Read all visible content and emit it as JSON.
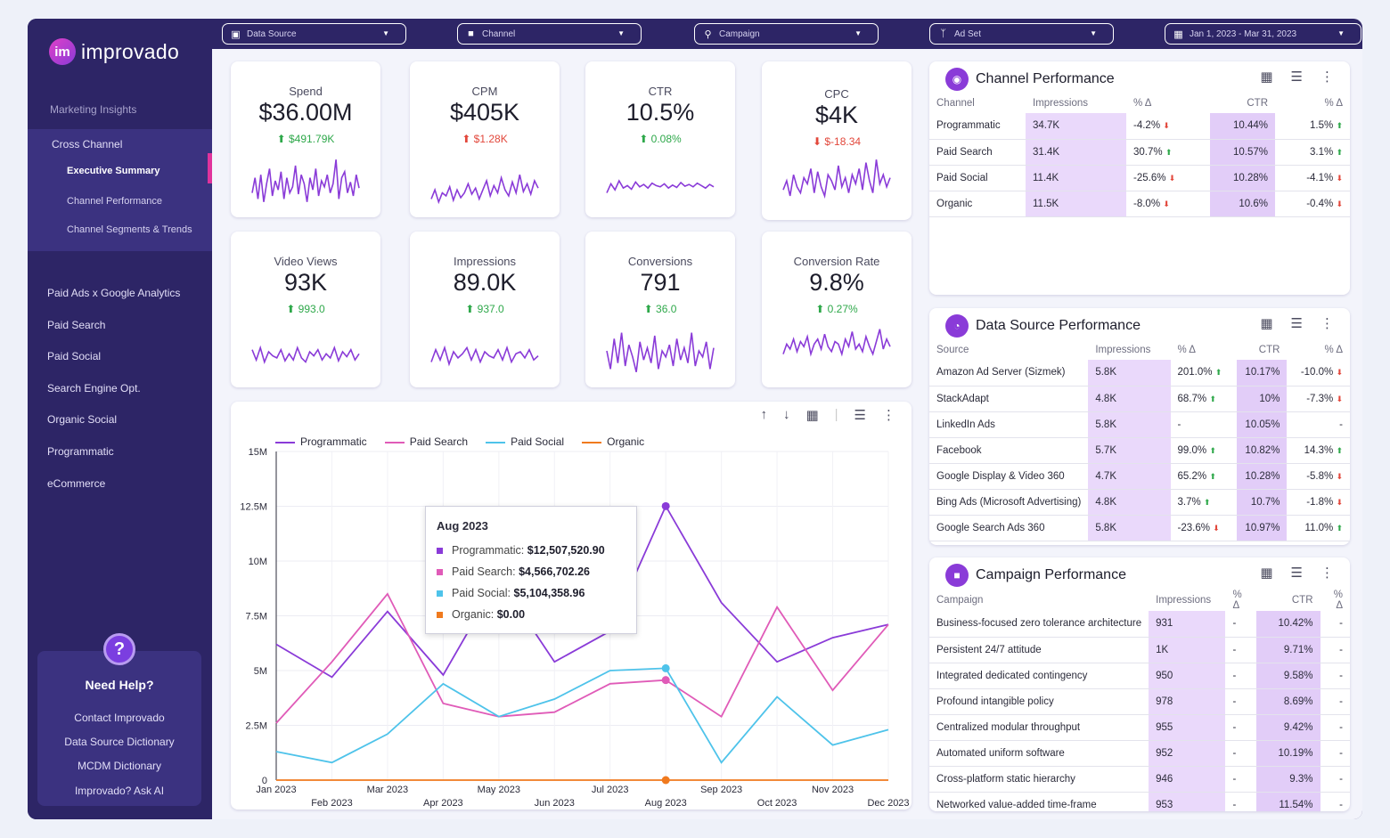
{
  "brand": {
    "logo_badge": "im",
    "name": "improvado",
    "accent": "#e0339c",
    "sidebar_bg": "#2d2566"
  },
  "sidebar": {
    "heading": "Marketing Insights",
    "group_title": "Cross Channel",
    "sub_items": [
      "Executive Summary",
      "Channel Performance",
      "Channel Segments & Trends"
    ],
    "items": [
      "Paid Ads x Google Analytics",
      "Paid Search",
      "Paid Social",
      "Search Engine Opt.",
      "Organic Social",
      "Programmatic",
      "eCommerce"
    ],
    "help": {
      "icon": "question-icon",
      "title": "Need Help?",
      "links": [
        "Contact Improvado",
        "Data Source Dictionary",
        "MCDM Dictionary",
        "Improvado? Ask AI"
      ]
    }
  },
  "filters": [
    {
      "label": "Data Source",
      "icon": "database-icon"
    },
    {
      "label": "Channel",
      "icon": "folder-icon"
    },
    {
      "label": "Campaign",
      "icon": "search-icon"
    },
    {
      "label": "Ad Set",
      "icon": "branch-icon"
    },
    {
      "label": "Jan 1, 2023 - Mar 31, 2023",
      "icon": "calendar-icon"
    }
  ],
  "kpis": [
    {
      "label": "Spend",
      "value": "$36.00M",
      "delta": "$491.79K",
      "dir": "up"
    },
    {
      "label": "CPM",
      "value": "$405K",
      "delta": "$1.28K",
      "dir": "down"
    },
    {
      "label": "CTR",
      "value": "10.5%",
      "delta": "0.08%",
      "dir": "up"
    },
    {
      "label": "CPC",
      "value": "$4K",
      "delta": "$-18.34",
      "dir": "down"
    },
    {
      "label": "Video Views",
      "value": "93K",
      "delta": "993.0",
      "dir": "up"
    },
    {
      "label": "Impressions",
      "value": "89.0K",
      "delta": "937.0",
      "dir": "up"
    },
    {
      "label": "Conversions",
      "value": "791",
      "delta": "36.0",
      "dir": "up"
    },
    {
      "label": "Conversion Rate",
      "value": "9.8%",
      "delta": "0.27%",
      "dir": "up"
    }
  ],
  "channel_perf": {
    "title": "Channel Performance",
    "headers": [
      "Channel",
      "Impressions",
      "% Δ",
      "CTR",
      "% Δ"
    ],
    "rows": [
      [
        "Programmatic",
        "34.7K",
        "-4.2%",
        "down",
        "10.44%",
        "1.5%",
        "up"
      ],
      [
        "Paid Search",
        "31.4K",
        "30.7%",
        "up",
        "10.57%",
        "3.1%",
        "up"
      ],
      [
        "Paid Social",
        "11.4K",
        "-25.6%",
        "down",
        "10.28%",
        "-4.1%",
        "down"
      ],
      [
        "Organic",
        "11.5K",
        "-8.0%",
        "down",
        "10.6%",
        "-0.4%",
        "down"
      ]
    ]
  },
  "source_perf": {
    "title": "Data Source Performance",
    "headers": [
      "Source",
      "Impressions",
      "% Δ",
      "CTR",
      "% Δ"
    ],
    "rows": [
      [
        "Amazon Ad Server (Sizmek)",
        "5.8K",
        "201.0%",
        "up",
        "10.17%",
        "-10.0%",
        "down"
      ],
      [
        "StackAdapt",
        "4.8K",
        "68.7%",
        "up",
        "10%",
        "-7.3%",
        "down"
      ],
      [
        "LinkedIn Ads",
        "5.8K",
        "-",
        "",
        "10.05%",
        "-",
        ""
      ],
      [
        "Facebook",
        "5.7K",
        "99.0%",
        "up",
        "10.82%",
        "14.3%",
        "up"
      ],
      [
        "Google Display & Video 360",
        "4.7K",
        "65.2%",
        "up",
        "10.28%",
        "-5.8%",
        "down"
      ],
      [
        "Bing Ads (Microsoft Advertising)",
        "4.8K",
        "3.7%",
        "up",
        "10.7%",
        "-1.8%",
        "down"
      ],
      [
        "Google Search Ads 360",
        "5.8K",
        "-23.6%",
        "down",
        "10.97%",
        "11.0%",
        "up"
      ]
    ]
  },
  "campaign_perf": {
    "title": "Campaign Performance",
    "headers": [
      "Campaign",
      "Impressions",
      "% Δ",
      "CTR",
      "% Δ"
    ],
    "rows": [
      [
        "Business-focused zero tolerance architecture",
        "931",
        "-",
        "10.42%",
        "-"
      ],
      [
        "Persistent 24/7 attitude",
        "1K",
        "-",
        "9.71%",
        "-"
      ],
      [
        "Integrated dedicated contingency",
        "950",
        "-",
        "9.58%",
        "-"
      ],
      [
        "Profound intangible policy",
        "978",
        "-",
        "8.69%",
        "-"
      ],
      [
        "Centralized modular throughput",
        "955",
        "-",
        "9.42%",
        "-"
      ],
      [
        "Automated uniform software",
        "952",
        "-",
        "10.19%",
        "-"
      ],
      [
        "Cross-platform static hierarchy",
        "946",
        "-",
        "9.3%",
        "-"
      ],
      [
        "Networked value-added time-frame",
        "953",
        "-",
        "11.54%",
        "-"
      ]
    ]
  },
  "chart_data": {
    "type": "line",
    "x": [
      "Jan 2023",
      "Feb 2023",
      "Mar 2023",
      "Apr 2023",
      "May 2023",
      "Jun 2023",
      "Jul 2023",
      "Aug 2023",
      "Sep 2023",
      "Oct 2023",
      "Nov 2023",
      "Dec 2023"
    ],
    "y_ticks": [
      "0",
      "2.5M",
      "5M",
      "7.5M",
      "10M",
      "12.5M",
      "15M"
    ],
    "ylim": [
      0,
      15000000
    ],
    "series": [
      {
        "name": "Programmatic",
        "color": "#8a3bd8",
        "values": [
          6200000,
          4700000,
          7700000,
          4800000,
          9200000,
          5400000,
          6800000,
          12507520.9,
          8100000,
          5400000,
          6500000,
          7100000
        ]
      },
      {
        "name": "Paid Search",
        "color": "#e05bb8",
        "values": [
          2600000,
          5400000,
          8500000,
          3500000,
          2900000,
          3100000,
          4400000,
          4566702.26,
          2900000,
          7900000,
          4100000,
          7100000
        ]
      },
      {
        "name": "Paid Social",
        "color": "#4ec3ea",
        "values": [
          1300000,
          800000,
          2100000,
          4400000,
          2900000,
          3700000,
          5000000,
          5104358.96,
          800000,
          3800000,
          1600000,
          2300000
        ]
      },
      {
        "name": "Organic",
        "color": "#f07a1e",
        "values": [
          0,
          0,
          0,
          0,
          0,
          0,
          0,
          0,
          0,
          0,
          0,
          0
        ]
      }
    ],
    "tooltip": {
      "title": "Aug 2023",
      "rows": [
        {
          "name": "Programmatic:",
          "value": "$12,507,520.90",
          "color": "#8a3bd8"
        },
        {
          "name": "Paid Search:",
          "value": "$4,566,702.26",
          "color": "#e05bb8"
        },
        {
          "name": "Paid Social:",
          "value": "$5,104,358.96",
          "color": "#4ec3ea"
        },
        {
          "name": "Organic:",
          "value": "$0.00",
          "color": "#f07a1e"
        }
      ]
    }
  },
  "sparks": [
    [
      30,
      55,
      20,
      60,
      15,
      45,
      70,
      25,
      50,
      35,
      65,
      20,
      55,
      30,
      40,
      75,
      28,
      60,
      45,
      15,
      55,
      35,
      70,
      25,
      50,
      40,
      60,
      30,
      45,
      85,
      20,
      55,
      65,
      30,
      48,
      25,
      60,
      38
    ],
    [
      20,
      35,
      15,
      30,
      25,
      40,
      18,
      35,
      22,
      30,
      45,
      28,
      38,
      20,
      35,
      50,
      25,
      42,
      30,
      55,
      35,
      25,
      48,
      30,
      60,
      32,
      45,
      28,
      50,
      38
    ],
    [
      30,
      45,
      35,
      50,
      38,
      42,
      36,
      48,
      40,
      44,
      38,
      46,
      42,
      40,
      45,
      38,
      43,
      39,
      47,
      41,
      44,
      40,
      46,
      42,
      38,
      44,
      40
    ],
    [
      35,
      50,
      25,
      60,
      40,
      30,
      55,
      45,
      70,
      30,
      65,
      40,
      25,
      60,
      50,
      35,
      75,
      40,
      55,
      30,
      60,
      45,
      70,
      35,
      80,
      50,
      30,
      85,
      45,
      60,
      40,
      55
    ],
    [
      55,
      30,
      60,
      25,
      50,
      40,
      35,
      55,
      28,
      45,
      30,
      60,
      35,
      25,
      50,
      40,
      55,
      30,
      45,
      35,
      60,
      28,
      50,
      38,
      55,
      30,
      45
    ],
    [
      25,
      55,
      30,
      60,
      20,
      50,
      35,
      45,
      60,
      30,
      55,
      25,
      50,
      40,
      35,
      55,
      30,
      60,
      25,
      45,
      50,
      35,
      55,
      30,
      40
    ],
    [
      50,
      20,
      70,
      30,
      80,
      25,
      60,
      40,
      15,
      65,
      35,
      55,
      30,
      75,
      20,
      50,
      40,
      60,
      25,
      70,
      35,
      55,
      30,
      80,
      25,
      50,
      40,
      65,
      20,
      55
    ],
    [
      40,
      60,
      50,
      70,
      45,
      65,
      55,
      75,
      40,
      60,
      70,
      50,
      80,
      55,
      45,
      65,
      60,
      40,
      70,
      55,
      85,
      50,
      60,
      45,
      75,
      55,
      40,
      65,
      90,
      50,
      70,
      55
    ]
  ]
}
